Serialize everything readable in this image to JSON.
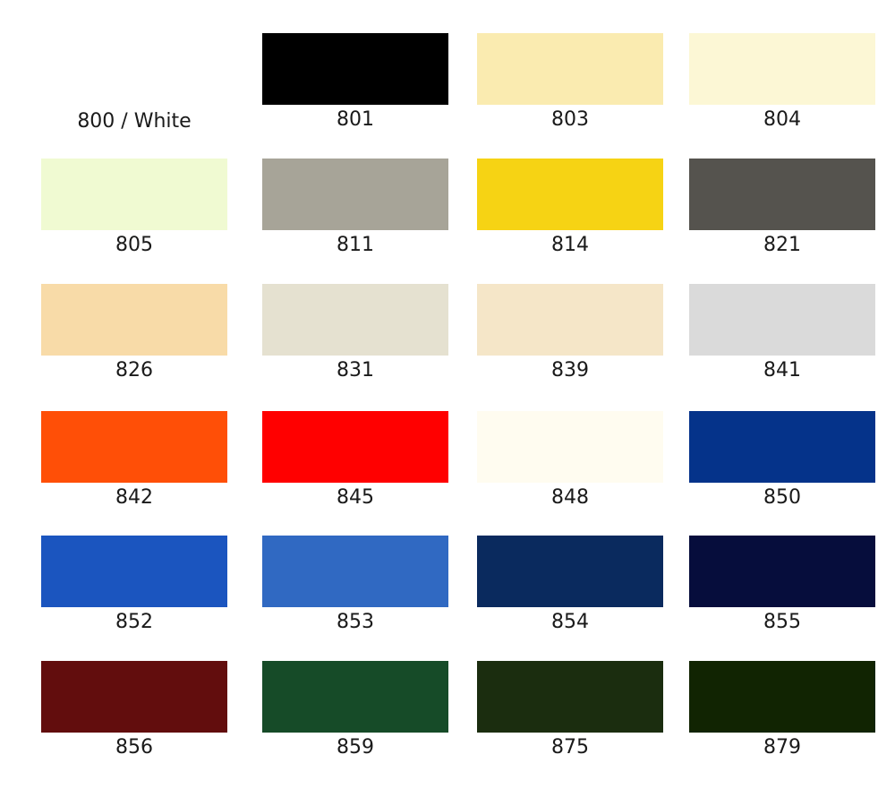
{
  "swatches": [
    {
      "code": "800 / White",
      "color": "#FFFFFF"
    },
    {
      "code": "801",
      "color": "#000000"
    },
    {
      "code": "803",
      "color": "#FAEBB0"
    },
    {
      "code": "804",
      "color": "#FCF7D5"
    },
    {
      "code": "805",
      "color": "#F0FAD2"
    },
    {
      "code": "811",
      "color": "#A7A498"
    },
    {
      "code": "814",
      "color": "#F6D314"
    },
    {
      "code": "821",
      "color": "#55534E"
    },
    {
      "code": "826",
      "color": "#F8DBA8"
    },
    {
      "code": "831",
      "color": "#E5E1D0"
    },
    {
      "code": "839",
      "color": "#F5E6C8"
    },
    {
      "code": "841",
      "color": "#DADADA"
    },
    {
      "code": "842",
      "color": "#FF4F07"
    },
    {
      "code": "845",
      "color": "#FF0000"
    },
    {
      "code": "848",
      "color": "#FFFCF0"
    },
    {
      "code": "850",
      "color": "#05338A"
    },
    {
      "code": "852",
      "color": "#1B55BF"
    },
    {
      "code": "853",
      "color": "#3069C2"
    },
    {
      "code": "854",
      "color": "#0A2A5E"
    },
    {
      "code": "855",
      "color": "#060D3C"
    },
    {
      "code": "856",
      "color": "#620D0D"
    },
    {
      "code": "859",
      "color": "#164B28"
    },
    {
      "code": "875",
      "color": "#1B2D0F"
    },
    {
      "code": "879",
      "color": "#112402"
    }
  ]
}
